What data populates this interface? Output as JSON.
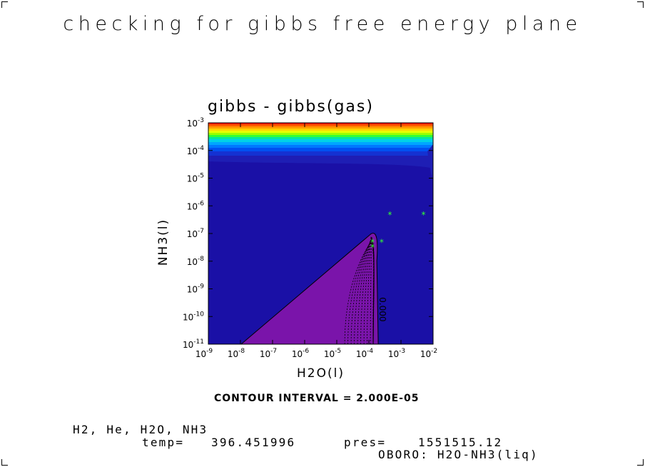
{
  "page_title": "checking for gibbs free energy plane",
  "contour_interval": "CONTOUR INTERVAL = 2.000E-05",
  "species": "H2, He, H2O, NH3",
  "temp_label": "temp=",
  "temp_value": "396.451996",
  "pres_label": "pres=",
  "pres_value": "1551515.12",
  "model_label": "OBORO: H2O-NH3(liq)",
  "colors": {
    "background_field": "#1a10a6",
    "region": "#7a14aa",
    "band_top": [
      "#ff0000",
      "#ff5a00",
      "#ff9a00",
      "#ffd200",
      "#e6ff00",
      "#9aff00",
      "#33ff33",
      "#00e6a0",
      "#00d2e6",
      "#00a6ff",
      "#0078ff",
      "#0050f0",
      "#1432d2",
      "#1e1eb4"
    ],
    "markers": "#33ff33"
  },
  "chart_data": {
    "type": "contour",
    "title": "gibbs - gibbs(gas)",
    "xlabel": "H2O(l)",
    "ylabel": "NH3(l)",
    "xscale": "log",
    "yscale": "log",
    "xlim": [
      1e-09,
      0.01
    ],
    "ylim": [
      1e-11,
      0.001
    ],
    "x_ticks": [
      {
        "base": "10",
        "exp": "-9"
      },
      {
        "base": "10",
        "exp": "-8"
      },
      {
        "base": "10",
        "exp": "-7"
      },
      {
        "base": "10",
        "exp": "-6"
      },
      {
        "base": "10",
        "exp": "-5"
      },
      {
        "base": "10",
        "exp": "-4"
      },
      {
        "base": "10",
        "exp": "-3"
      },
      {
        "base": "10",
        "exp": "-2"
      }
    ],
    "y_ticks": [
      {
        "base": "10",
        "exp": "-11"
      },
      {
        "base": "10",
        "exp": "-10"
      },
      {
        "base": "10",
        "exp": "-9"
      },
      {
        "base": "10",
        "exp": "-8"
      },
      {
        "base": "10",
        "exp": "-7"
      },
      {
        "base": "10",
        "exp": "-6"
      },
      {
        "base": "10",
        "exp": "-5"
      },
      {
        "base": "10",
        "exp": "-4"
      },
      {
        "base": "10",
        "exp": "-3"
      }
    ],
    "contour_label": "0.000",
    "points": [
      {
        "x": 0.00013,
        "y": 5e-08
      },
      {
        "x": 0.00013,
        "y": 3.3e-08
      },
      {
        "x": 0.00025,
        "y": 5e-08
      },
      {
        "x": 0.00045,
        "y": 5e-07
      },
      {
        "x": 0.005,
        "y": 5e-07
      }
    ]
  }
}
